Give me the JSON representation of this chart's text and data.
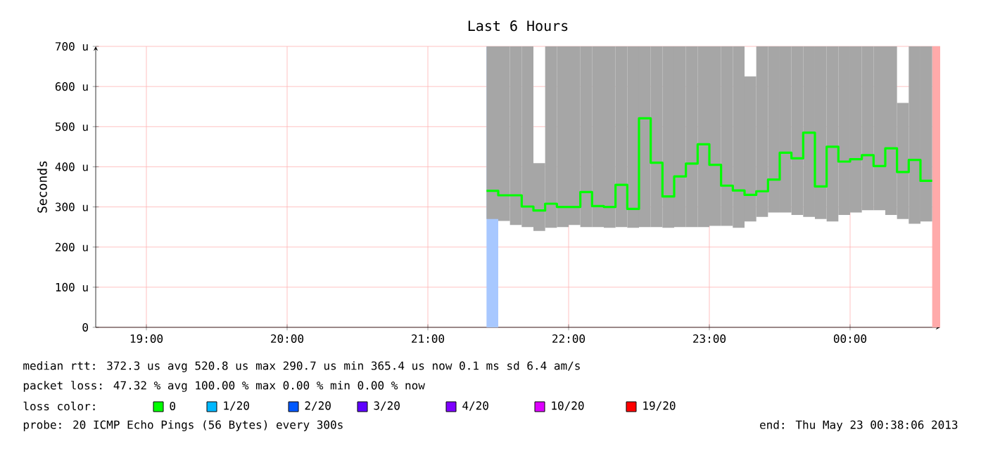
{
  "chart_data": {
    "type": "step",
    "title": "Last 6 Hours",
    "ylabel": "Seconds",
    "x": [
      21.4167,
      21.5,
      21.5833,
      21.6667,
      21.75,
      21.8333,
      21.9167,
      22,
      22.0833,
      22.1667,
      22.25,
      22.3333,
      22.4167,
      22.5,
      22.5833,
      22.6667,
      22.75,
      22.8333,
      22.9167,
      23,
      23.0833,
      23.1667,
      23.25,
      23.3333,
      23.4167,
      23.5,
      23.5833,
      23.6667,
      23.75,
      23.8333,
      23.9167,
      24,
      24.0833,
      24.1667,
      24.25,
      24.3333,
      24.4167,
      24.5,
      24.5833
    ],
    "series": [
      {
        "color": "#00ff00",
        "values": [
          340,
          329,
          329,
          301,
          291,
          308,
          300,
          300,
          337,
          302,
          300,
          355,
          295,
          521,
          410,
          326,
          376,
          408,
          456,
          405,
          353,
          341,
          330,
          339,
          368,
          435,
          421,
          485,
          351,
          450,
          413,
          419,
          429,
          402,
          446,
          387,
          417,
          365,
          365
        ],
        "lower": [
          270,
          265,
          255,
          250,
          240,
          248,
          250,
          255,
          250,
          250,
          248,
          250,
          248,
          250,
          250,
          248,
          250,
          250,
          250,
          253,
          253,
          248,
          264,
          275,
          286,
          286,
          280,
          275,
          270,
          264,
          280,
          286,
          292,
          292,
          280,
          270,
          258,
          264,
          264
        ],
        "upper": [
          700,
          700,
          700,
          700,
          409,
          700,
          700,
          700,
          700,
          700,
          700,
          700,
          700,
          700,
          700,
          700,
          700,
          700,
          700,
          700,
          700,
          700,
          625,
          700,
          700,
          700,
          700,
          700,
          700,
          700,
          700,
          700,
          700,
          700,
          700,
          559,
          700,
          700,
          700
        ]
      },
      {
        "name": "0",
        "color": "#00ff00",
        "values": [
          null,
          null,
          null,
          null,
          null,
          null,
          null,
          null,
          null,
          null,
          null,
          null,
          null,
          null,
          null,
          null,
          null,
          null,
          null,
          null,
          null,
          null,
          null,
          null,
          null,
          null,
          null,
          null,
          null,
          null,
          null,
          null,
          null,
          null,
          null,
          null,
          null,
          null,
          null
        ]
      },
      {
        "name": "1/20",
        "color": "#00b8ff",
        "values": [
          null,
          null,
          null,
          null,
          null,
          null,
          null,
          null,
          null,
          null,
          null,
          null,
          null,
          null,
          null,
          null,
          null,
          null,
          null,
          null,
          null,
          null,
          null,
          null,
          null,
          null,
          null,
          null,
          null,
          null,
          null,
          null,
          null,
          null,
          null,
          null,
          null,
          null,
          null
        ]
      },
      {
        "name": "2/20",
        "color": "#0059ff",
        "values": [
          null,
          null,
          null,
          null,
          null,
          null,
          null,
          null,
          null,
          null,
          null,
          null,
          null,
          null,
          null,
          null,
          null,
          null,
          null,
          null,
          null,
          null,
          null,
          null,
          null,
          null,
          null,
          null,
          null,
          null,
          null,
          null,
          null,
          null,
          null,
          null,
          null,
          null,
          null
        ]
      },
      {
        "name": "3/20",
        "color": "#5e00ff",
        "values": [
          null,
          null,
          null,
          null,
          null,
          null,
          null,
          null,
          null,
          null,
          null,
          null,
          null,
          null,
          null,
          null,
          null,
          null,
          null,
          null,
          null,
          null,
          null,
          null,
          null,
          null,
          null,
          null,
          null,
          null,
          null,
          null,
          null,
          null,
          null,
          null,
          null,
          null,
          null
        ]
      },
      {
        "name": "4/20",
        "color": "#7e00ff",
        "values": [
          null,
          null,
          null,
          null,
          null,
          null,
          null,
          null,
          null,
          null,
          null,
          null,
          null,
          null,
          null,
          null,
          null,
          null,
          null,
          null,
          null,
          null,
          null,
          null,
          null,
          null,
          null,
          null,
          null,
          null,
          null,
          null,
          null,
          null,
          null,
          null,
          null,
          null,
          null
        ]
      },
      {
        "name": "10/20",
        "color": "#dd00ff",
        "values": [
          null,
          null,
          null,
          null,
          null,
          null,
          null,
          null,
          null,
          null,
          null,
          null,
          null,
          null,
          null,
          null,
          null,
          null,
          null,
          null,
          null,
          null,
          null,
          null,
          null,
          null,
          null,
          null,
          null,
          null,
          null,
          null,
          null,
          null,
          null,
          null,
          null,
          null,
          null
        ]
      },
      {
        "name": "19/20",
        "color": "#ff0000",
        "values": [
          null,
          null,
          null,
          null,
          null,
          null,
          null,
          null,
          null,
          null,
          null,
          null,
          null,
          null,
          null,
          null,
          null,
          null,
          null,
          null,
          null,
          null,
          null,
          null,
          null,
          null,
          null,
          null,
          null,
          null,
          null,
          null,
          null,
          null,
          null,
          null,
          null,
          null,
          null
        ]
      }
    ],
    "xlim": [
      18.64,
      24.64
    ],
    "ylim": [
      0,
      700
    ],
    "xticks": [
      {
        "value": 19,
        "label": "19:00"
      },
      {
        "value": 20,
        "label": "20:00"
      },
      {
        "value": 21,
        "label": "21:00"
      },
      {
        "value": 22,
        "label": "22:00"
      },
      {
        "value": 23,
        "label": "23:00"
      },
      {
        "value": 24,
        "label": "00:00"
      }
    ],
    "yticks": [
      0,
      {
        "value": 100,
        "label": "100 u"
      },
      {
        "value": 200,
        "label": "200 u"
      },
      {
        "value": 300,
        "label": "300 u"
      },
      {
        "value": 400,
        "label": "400 u"
      },
      {
        "value": 500,
        "label": "500 u"
      },
      {
        "value": 600,
        "label": "600 u"
      },
      {
        "value": 700,
        "label": "700 u"
      }
    ],
    "bands": [
      {
        "axis": "x",
        "from": 21.4167,
        "to": 21.5,
        "color": "#a8c8ff"
      },
      {
        "axis": "x",
        "from": 24.5833,
        "to": 24.64,
        "color": "#ffaaaa"
      }
    ],
    "grid": true,
    "legend": "bottom",
    "annotations": [
      "median rtt:  372.3 us avg  520.8 us max  290.7 us min  365.4 us now  0.1 ms sd  6.4   am/s",
      "packet loss: 47.32 % avg  100.00 % max  0.00 % min  0.00 % now",
      "loss color:",
      "probe:       20 ICMP Echo Pings (56 Bytes) every 300s",
      "end: Thu May 23 00:38:06 2013"
    ]
  }
}
